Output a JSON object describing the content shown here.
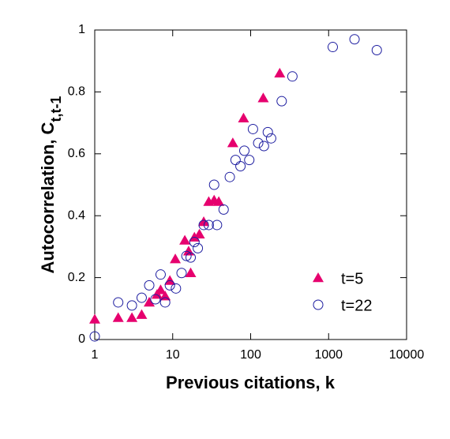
{
  "chart_data": {
    "type": "scatter",
    "x_label": "Previous citations, k",
    "y_label": "Autocorrelation, C",
    "y_label_subscript": "t,t-1",
    "xscale": "log",
    "xlim": [
      1,
      10000
    ],
    "xticks": [
      1,
      10,
      100,
      1000,
      10000
    ],
    "ylim": [
      0,
      1
    ],
    "yticks": [
      0,
      0.2,
      0.4,
      0.6,
      0.8,
      1
    ],
    "legend": "lower right",
    "series": [
      {
        "name": "t=5",
        "color": "#e6006e",
        "marker": "triangle",
        "x": [
          1,
          2,
          3,
          4,
          5,
          6.3,
          7,
          8,
          9.2,
          10.8,
          14.3,
          16,
          17,
          19,
          22,
          25,
          29,
          34,
          39,
          59,
          81,
          145,
          236
        ],
        "values": [
          0.065,
          0.07,
          0.07,
          0.08,
          0.12,
          0.145,
          0.16,
          0.14,
          0.19,
          0.26,
          0.32,
          0.285,
          0.215,
          0.33,
          0.34,
          0.38,
          0.445,
          0.45,
          0.445,
          0.635,
          0.715,
          0.78,
          0.86
        ]
      },
      {
        "name": "t=22",
        "color": "#1e1ea0",
        "marker": "circle",
        "x": [
          1,
          2,
          3,
          4,
          5,
          6,
          7,
          8,
          9.2,
          11,
          13,
          15,
          17,
          19,
          21,
          25,
          29,
          34,
          37,
          45,
          54,
          64,
          74,
          83,
          96,
          107,
          125,
          148,
          166,
          183,
          250,
          343,
          1130,
          2150,
          4150
        ],
        "values": [
          0.01,
          0.12,
          0.11,
          0.135,
          0.175,
          0.13,
          0.21,
          0.12,
          0.175,
          0.165,
          0.215,
          0.27,
          0.265,
          0.315,
          0.295,
          0.37,
          0.37,
          0.5,
          0.37,
          0.42,
          0.525,
          0.58,
          0.56,
          0.61,
          0.58,
          0.68,
          0.635,
          0.625,
          0.67,
          0.65,
          0.77,
          0.85,
          0.945,
          0.97,
          0.935
        ]
      }
    ]
  }
}
